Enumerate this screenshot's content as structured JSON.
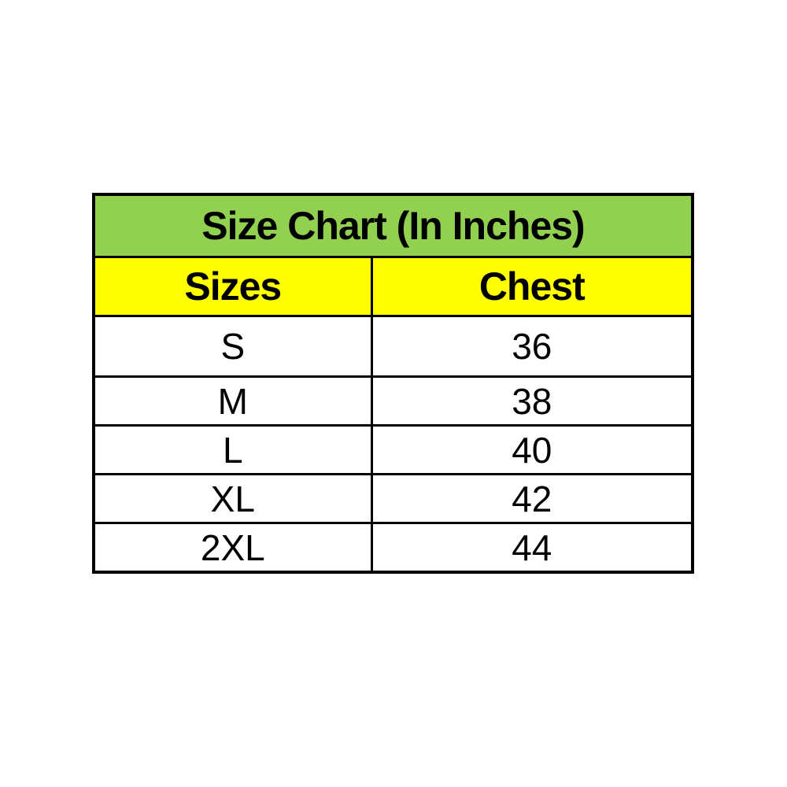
{
  "page": {
    "background": "#FFFFFF"
  },
  "table": {
    "title": "Size Chart (In Inches)",
    "columns": [
      "Sizes",
      "Chest"
    ],
    "rows": [
      {
        "size": "S",
        "chest": "36"
      },
      {
        "size": "M",
        "chest": "38"
      },
      {
        "size": "L",
        "chest": "40"
      },
      {
        "size": "XL",
        "chest": "42"
      },
      {
        "size": "2XL",
        "chest": "44"
      }
    ],
    "colors": {
      "title_bg": "#92D050",
      "header_bg": "#FFFF00",
      "body_bg": "#FFFFFF",
      "border": "#000000",
      "text": "#000000"
    }
  },
  "chart_data": {
    "type": "table",
    "title": "Size Chart (In Inches)",
    "columns": [
      "Sizes",
      "Chest"
    ],
    "rows": [
      [
        "S",
        36
      ],
      [
        "M",
        38
      ],
      [
        "L",
        40
      ],
      [
        "XL",
        42
      ],
      [
        "2XL",
        44
      ]
    ],
    "units": "inches"
  }
}
